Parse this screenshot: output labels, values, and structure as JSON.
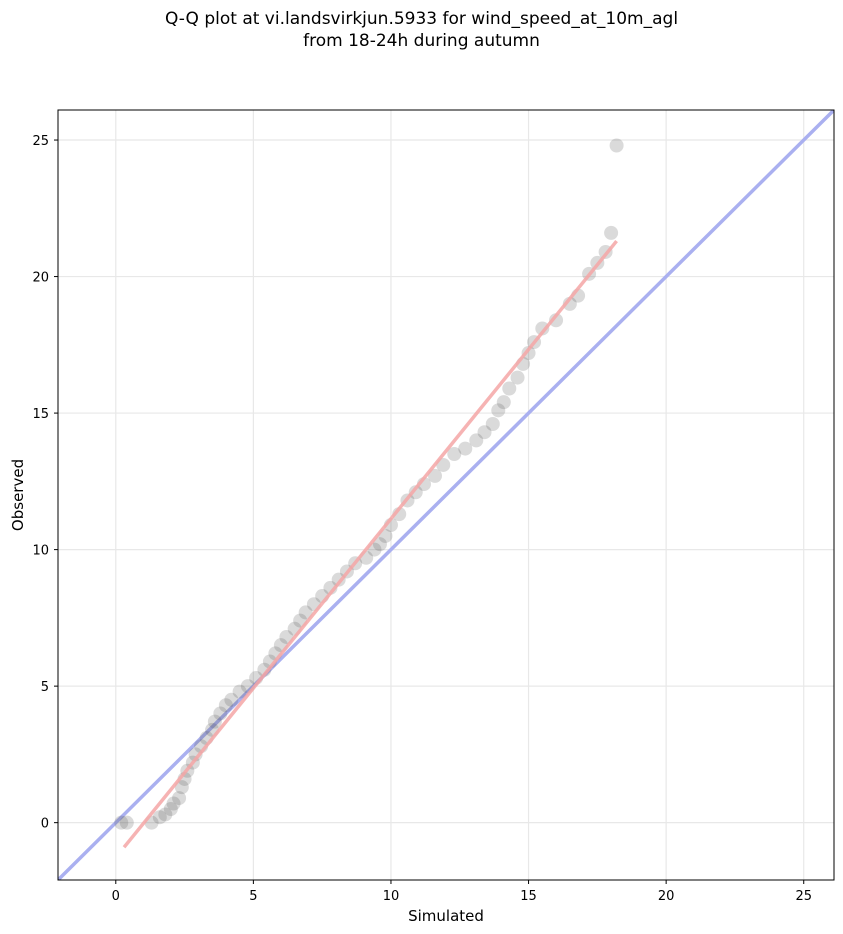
{
  "chart_data": {
    "type": "scatter",
    "title_line1": "Q-Q plot at vi.landsvirkjun.5933 for wind_speed_at_10m_agl",
    "title_line2": "from 18-24h during autumn",
    "xlabel": "Simulated",
    "ylabel": "Observed",
    "xlim": [
      -2.1,
      26.1
    ],
    "ylim": [
      -2.1,
      26.1
    ],
    "xticks": [
      0,
      5,
      10,
      15,
      20,
      25
    ],
    "yticks": [
      0,
      5,
      10,
      15,
      20,
      25
    ],
    "grid": true,
    "identity_line": {
      "from": [
        -2.1,
        -2.1
      ],
      "to": [
        26.1,
        26.1
      ],
      "color": "#aab0f0"
    },
    "fit_line": {
      "from": [
        0.3,
        -0.9
      ],
      "to": [
        18.2,
        21.3
      ],
      "color": "#f4a6a6"
    },
    "points": [
      [
        0.2,
        0.0
      ],
      [
        0.4,
        0.0
      ],
      [
        1.3,
        0.0
      ],
      [
        1.6,
        0.2
      ],
      [
        1.8,
        0.3
      ],
      [
        2.0,
        0.5
      ],
      [
        2.1,
        0.7
      ],
      [
        2.3,
        0.9
      ],
      [
        2.4,
        1.3
      ],
      [
        2.5,
        1.6
      ],
      [
        2.6,
        1.9
      ],
      [
        2.8,
        2.2
      ],
      [
        2.9,
        2.5
      ],
      [
        3.1,
        2.8
      ],
      [
        3.3,
        3.1
      ],
      [
        3.5,
        3.4
      ],
      [
        3.6,
        3.7
      ],
      [
        3.8,
        4.0
      ],
      [
        4.0,
        4.3
      ],
      [
        4.2,
        4.5
      ],
      [
        4.5,
        4.8
      ],
      [
        4.8,
        5.0
      ],
      [
        5.1,
        5.3
      ],
      [
        5.4,
        5.6
      ],
      [
        5.6,
        5.9
      ],
      [
        5.8,
        6.2
      ],
      [
        6.0,
        6.5
      ],
      [
        6.2,
        6.8
      ],
      [
        6.5,
        7.1
      ],
      [
        6.7,
        7.4
      ],
      [
        6.9,
        7.7
      ],
      [
        7.2,
        8.0
      ],
      [
        7.5,
        8.3
      ],
      [
        7.8,
        8.6
      ],
      [
        8.1,
        8.9
      ],
      [
        8.4,
        9.2
      ],
      [
        8.7,
        9.5
      ],
      [
        9.1,
        9.7
      ],
      [
        9.4,
        10.0
      ],
      [
        9.6,
        10.2
      ],
      [
        9.8,
        10.5
      ],
      [
        10.0,
        10.9
      ],
      [
        10.3,
        11.3
      ],
      [
        10.6,
        11.8
      ],
      [
        10.9,
        12.1
      ],
      [
        11.2,
        12.4
      ],
      [
        11.6,
        12.7
      ],
      [
        11.9,
        13.1
      ],
      [
        12.3,
        13.5
      ],
      [
        12.7,
        13.7
      ],
      [
        13.1,
        14.0
      ],
      [
        13.4,
        14.3
      ],
      [
        13.7,
        14.6
      ],
      [
        13.9,
        15.1
      ],
      [
        14.1,
        15.4
      ],
      [
        14.3,
        15.9
      ],
      [
        14.6,
        16.3
      ],
      [
        14.8,
        16.8
      ],
      [
        15.0,
        17.2
      ],
      [
        15.2,
        17.6
      ],
      [
        15.5,
        18.1
      ],
      [
        16.0,
        18.4
      ],
      [
        16.5,
        19.0
      ],
      [
        16.8,
        19.3
      ],
      [
        17.2,
        20.1
      ],
      [
        17.5,
        20.5
      ],
      [
        17.8,
        20.9
      ],
      [
        18.0,
        21.6
      ],
      [
        18.2,
        24.8
      ]
    ]
  }
}
